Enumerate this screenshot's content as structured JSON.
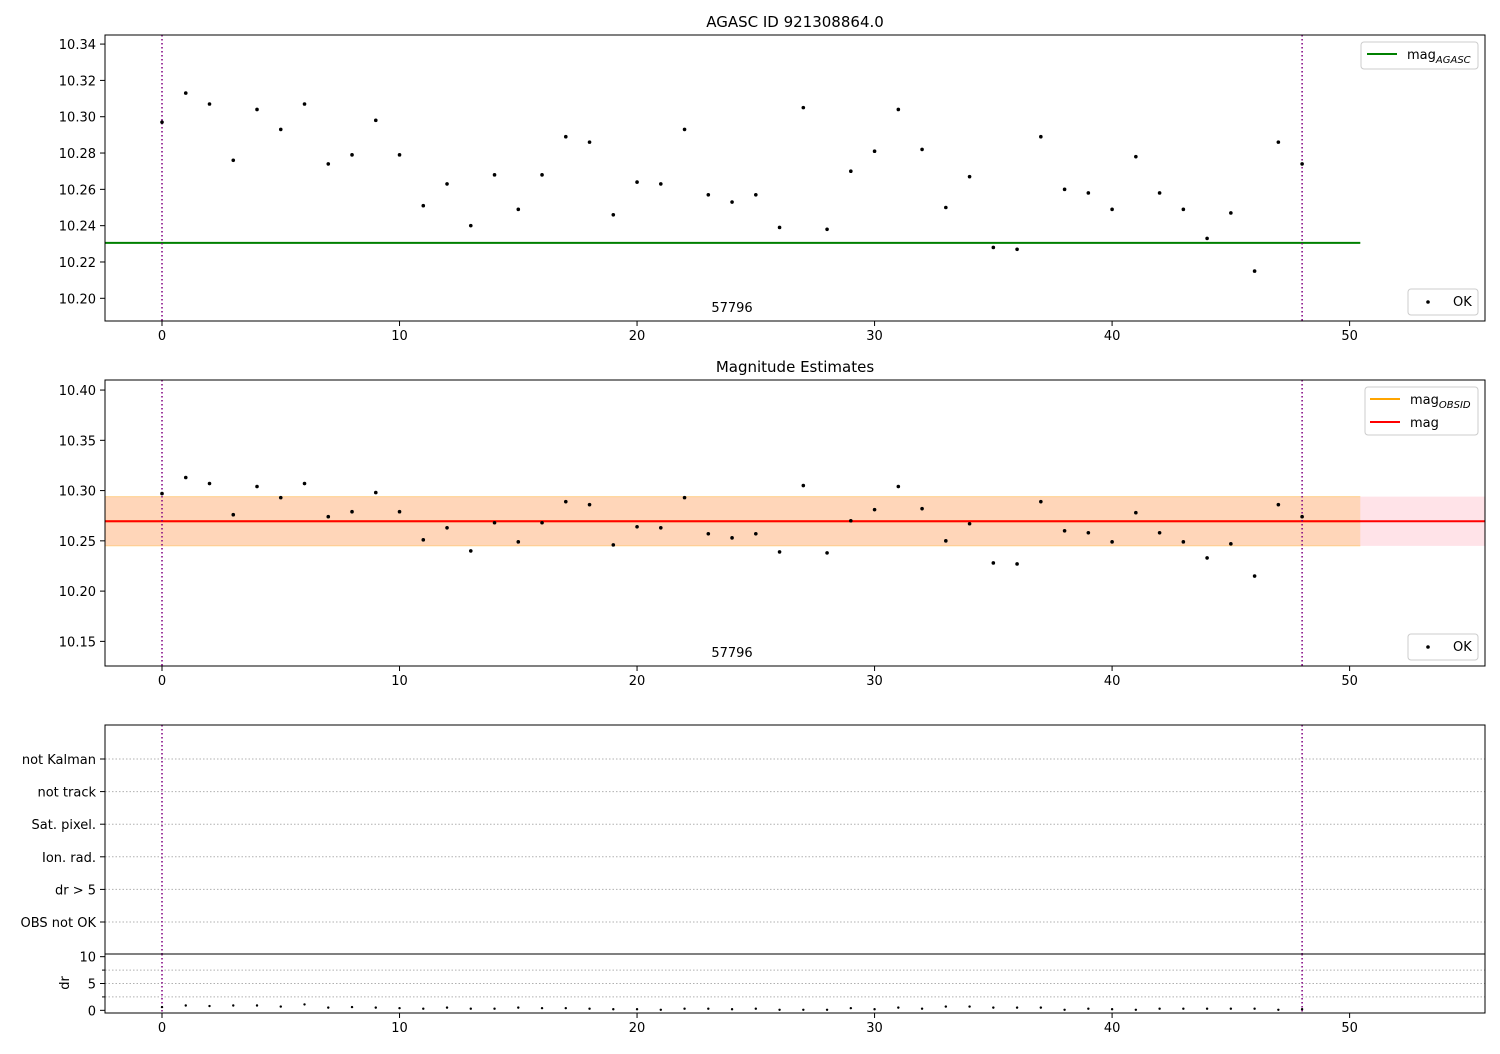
{
  "chart_data": [
    {
      "type": "scatter",
      "title": "AGASC ID 921308864.0",
      "xlim": [
        -2.4,
        55.7
      ],
      "ylim": [
        10.1875,
        10.345
      ],
      "x_ticks": [
        0,
        10,
        20,
        30,
        40,
        50
      ],
      "y_ticks": [
        10.2,
        10.22,
        10.24,
        10.26,
        10.28,
        10.3,
        10.32,
        10.34
      ],
      "y_tick_labels": [
        "10.20",
        "10.22",
        "10.24",
        "10.26",
        "10.28",
        "10.30",
        "10.32",
        "10.34"
      ],
      "series": [
        {
          "name": "OK",
          "x": [
            0,
            1,
            2,
            3,
            4,
            5,
            6,
            7,
            8,
            9,
            10,
            11,
            12,
            13,
            14,
            15,
            16,
            17,
            18,
            19,
            20,
            21,
            22,
            23,
            24,
            25,
            26,
            27,
            28,
            29,
            30,
            31,
            32,
            33,
            34,
            35,
            36,
            37,
            38,
            39,
            40,
            41,
            42,
            43,
            44,
            45,
            46,
            47,
            48
          ],
          "y": [
            10.297,
            10.313,
            10.307,
            10.276,
            10.304,
            10.293,
            10.307,
            10.274,
            10.279,
            10.298,
            10.279,
            10.251,
            10.263,
            10.24,
            10.268,
            10.249,
            10.268,
            10.289,
            10.286,
            10.246,
            10.264,
            10.263,
            10.293,
            10.257,
            10.253,
            10.257,
            10.239,
            10.305,
            10.238,
            10.27,
            10.281,
            10.304,
            10.282,
            10.25,
            10.267,
            10.228,
            10.227,
            10.289,
            10.26,
            10.258,
            10.249,
            10.278,
            10.258,
            10.249,
            10.233,
            10.247,
            10.215,
            10.286,
            10.274
          ]
        }
      ],
      "hlines": [
        {
          "name": "mag_AGASC",
          "y": 10.2305,
          "x_range": [
            -2.4,
            50.45
          ],
          "color": "#008000"
        }
      ],
      "vlines": {
        "x": [
          0,
          48
        ],
        "color": "#800080",
        "style": "dotted"
      },
      "annotation": {
        "text": "57796",
        "x": 24
      },
      "legends": [
        {
          "position": "upper right",
          "entries": [
            {
              "base": "mag",
              "sub": "AGASC",
              "color": "#008000"
            }
          ]
        },
        {
          "position": "lower right",
          "entries": [
            {
              "label": "OK",
              "marker": "point"
            }
          ]
        }
      ]
    },
    {
      "type": "scatter",
      "title": "Magnitude Estimates",
      "xlim": [
        -2.4,
        55.7
      ],
      "ylim": [
        10.1255,
        10.41
      ],
      "x_ticks": [
        0,
        10,
        20,
        30,
        40,
        50
      ],
      "y_ticks": [
        10.15,
        10.2,
        10.25,
        10.3,
        10.35,
        10.4
      ],
      "y_tick_labels": [
        "10.15",
        "10.20",
        "10.25",
        "10.30",
        "10.35",
        "10.40"
      ],
      "series": [
        {
          "name": "OK",
          "x": [
            0,
            1,
            2,
            3,
            4,
            5,
            6,
            7,
            8,
            9,
            10,
            11,
            12,
            13,
            14,
            15,
            16,
            17,
            18,
            19,
            20,
            21,
            22,
            23,
            24,
            25,
            26,
            27,
            28,
            29,
            30,
            31,
            32,
            33,
            34,
            35,
            36,
            37,
            38,
            39,
            40,
            41,
            42,
            43,
            44,
            45,
            46,
            47,
            48
          ],
          "y": [
            10.297,
            10.313,
            10.307,
            10.276,
            10.304,
            10.293,
            10.307,
            10.274,
            10.279,
            10.298,
            10.279,
            10.251,
            10.263,
            10.24,
            10.268,
            10.249,
            10.268,
            10.289,
            10.286,
            10.246,
            10.264,
            10.263,
            10.293,
            10.257,
            10.253,
            10.257,
            10.239,
            10.305,
            10.238,
            10.27,
            10.281,
            10.304,
            10.282,
            10.25,
            10.267,
            10.228,
            10.227,
            10.289,
            10.26,
            10.258,
            10.249,
            10.278,
            10.258,
            10.249,
            10.233,
            10.247,
            10.215,
            10.286,
            10.274
          ]
        }
      ],
      "hlines": [
        {
          "name": "mag_OBSID",
          "y": 10.2695,
          "x_range": [
            -2.4,
            50.45
          ],
          "color": "#ffa500"
        },
        {
          "name": "mag",
          "y": 10.2695,
          "x_range": [
            -2.4,
            55.7
          ],
          "color": "#ff0000"
        }
      ],
      "bands": [
        {
          "name": "mag",
          "y_range": [
            10.245,
            10.294
          ],
          "x_range": [
            -2.4,
            55.7
          ],
          "color": "#ffc0cb",
          "opacity": 0.45
        },
        {
          "name": "mag_OBSID",
          "y_range": [
            10.245,
            10.294
          ],
          "x_range": [
            -2.4,
            50.45
          ],
          "color": "#ffa500",
          "opacity": 0.2
        }
      ],
      "vlines": {
        "x": [
          0,
          48
        ],
        "color": "#800080",
        "style": "dotted"
      },
      "annotation": {
        "text": "57796",
        "x": 24
      },
      "legends": [
        {
          "position": "upper right",
          "entries": [
            {
              "base": "mag",
              "sub": "OBSID",
              "color": "#ffa500"
            },
            {
              "label": "mag",
              "color": "#ff0000"
            }
          ]
        },
        {
          "position": "lower right",
          "entries": [
            {
              "label": "OK",
              "marker": "point"
            }
          ]
        }
      ]
    },
    {
      "type": "scatter",
      "title": "",
      "xlim": [
        -2.4,
        55.7
      ],
      "categories": [
        "not Kalman",
        "not track",
        "Sat. pixel.",
        "Ion. rad.",
        "dr > 5",
        "OBS not OK"
      ],
      "vlines": {
        "x": [
          0,
          48
        ],
        "color": "#800080",
        "style": "dotted"
      },
      "grid": "horizontal dotted"
    },
    {
      "type": "scatter",
      "ylabel": "dr",
      "xlim": [
        -2.4,
        55.7
      ],
      "ylim": [
        -0.5,
        10.5
      ],
      "x_ticks": [
        0,
        10,
        20,
        30,
        40,
        50
      ],
      "y_ticks": [
        0,
        5,
        10
      ],
      "series": [
        {
          "name": "dr",
          "x": [
            0,
            1,
            2,
            3,
            4,
            5,
            6,
            7,
            8,
            9,
            10,
            11,
            12,
            13,
            14,
            15,
            16,
            17,
            18,
            19,
            20,
            21,
            22,
            23,
            24,
            25,
            26,
            27,
            28,
            29,
            30,
            31,
            32,
            33,
            34,
            35,
            36,
            37,
            38,
            39,
            40,
            41,
            42,
            43,
            44,
            45,
            46,
            47,
            48
          ],
          "y": [
            0.6,
            0.9,
            0.8,
            0.9,
            0.9,
            0.7,
            1.1,
            0.5,
            0.6,
            0.5,
            0.4,
            0.3,
            0.5,
            0.3,
            0.3,
            0.5,
            0.4,
            0.4,
            0.3,
            0.2,
            0.2,
            0.1,
            0.3,
            0.3,
            0.2,
            0.3,
            0.1,
            0.1,
            0.1,
            0.4,
            0.2,
            0.5,
            0.3,
            0.7,
            0.7,
            0.5,
            0.5,
            0.5,
            0.1,
            0.3,
            0.2,
            0.1,
            0.3,
            0.3,
            0.3,
            0.3,
            0.3,
            0.1,
            0.2
          ]
        }
      ],
      "vlines": {
        "x": [
          0,
          48
        ],
        "color": "#800080",
        "style": "dotted"
      },
      "grid": "horizontal dotted"
    }
  ]
}
